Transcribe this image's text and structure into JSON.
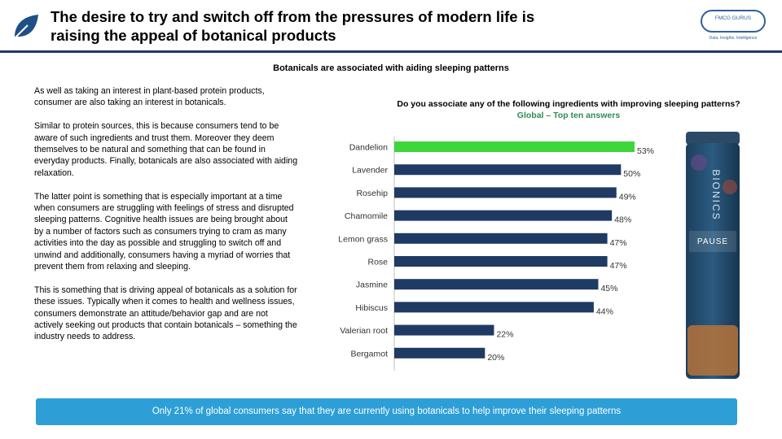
{
  "header": {
    "title_line1": "The desire to try and switch off from the pressures of modern life is",
    "title_line2": "raising the appeal of botanical products",
    "logo_name": "FMCG GURUS",
    "logo_tagline": "Data. Insights. Intelligence",
    "leaf_icon_color": "#1e4f86"
  },
  "subtitle": "Botanicals are associated with aiding sleeping patterns",
  "body": {
    "p1": "As well as taking an interest in plant-based protein products, consumer are also taking an interest in botanicals.",
    "p2": "Similar to protein sources, this is because consumers tend to be aware of such ingredients and trust them. Moreover they deem themselves to be natural and something that can be found in everyday products. Finally, botanicals are also associated with aiding relaxation.",
    "p3": "The latter point is something that is especially important at a time when consumers are struggling with feelings of stress and disrupted sleeping patterns. Cognitive health issues are being brought about by a number of factors such as consumers trying to cram as many activities into the day as possible and struggling to switch off and unwind and additionally, consumers having a myriad of worries that prevent them from relaxing and sleeping.",
    "p4": "This is something that is driving appeal of botanicals as a solution for these issues. Typically when it comes to health and wellness issues, consumers demonstrate an attitude/behavior gap and are not actively seeking out products that contain botanicals – something the industry needs to address."
  },
  "question": {
    "text": "Do you associate any of the following ingredients with improving sleeping patterns?",
    "sub": "Global – Top ten answers"
  },
  "chart_data": {
    "type": "bar",
    "orientation": "horizontal",
    "categories": [
      "Dandelion",
      "Lavender",
      "Rosehip",
      "Chamomile",
      "Lemon grass",
      "Rose",
      "Jasmine",
      "Hibiscus",
      "Valerian root",
      "Bergamot"
    ],
    "values": [
      53,
      50,
      49,
      48,
      47,
      47,
      45,
      44,
      22,
      20
    ],
    "value_labels": [
      "53%",
      "50%",
      "49%",
      "48%",
      "47%",
      "47%",
      "45%",
      "44%",
      "22%",
      "20%"
    ],
    "highlight_index": 0,
    "colors": {
      "highlight": "#3dd63d",
      "default": "#1f3a63"
    },
    "xlim": [
      0,
      53
    ],
    "title": "Do you associate any of the following ingredients with improving sleeping patterns?",
    "subtitle": "Global – Top ten answers"
  },
  "product": {
    "brand": "BIONICS",
    "name": "PAUSE"
  },
  "callout": {
    "text": "Only 21% of global consumers say that they are currently using botanicals to help improve their sleeping patterns",
    "color": "#2e9fd6"
  }
}
